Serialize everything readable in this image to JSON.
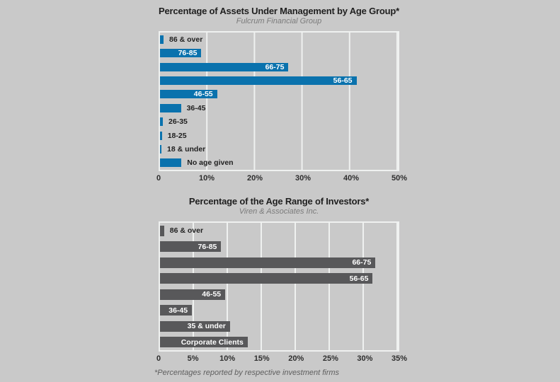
{
  "page": {
    "background_color": "#c9c9c9",
    "grid_color": "#eff1f0",
    "footnote": "*Percentages reported by respective investment firms"
  },
  "chart_data": [
    {
      "type": "bar",
      "orientation": "horizontal",
      "title": "Percentage of Assets Under Management by Age Group*",
      "subtitle": "Fulcrum Financial Group",
      "bar_color": "#0a72ad",
      "grid": true,
      "xlabel": "",
      "ylabel": "",
      "xlim": [
        0,
        50
      ],
      "xticks": [
        "0",
        "10%",
        "20%",
        "30%",
        "40%",
        "50%"
      ],
      "categories": [
        "86 & over",
        "76-85",
        "66-75",
        "56-65",
        "46-55",
        "36-45",
        "26-35",
        "18-25",
        "18 & under",
        "No age given"
      ],
      "values": [
        0.75,
        8.7,
        27,
        41.3,
        12,
        4.4,
        0.6,
        0.4,
        0.25,
        4.5
      ],
      "label_inside": [
        false,
        true,
        true,
        true,
        true,
        false,
        false,
        false,
        false,
        false
      ]
    },
    {
      "type": "bar",
      "orientation": "horizontal",
      "title": "Percentage of the Age Range of Investors*",
      "subtitle": "Viren & Associates Inc.",
      "bar_color": "#58585a",
      "grid": true,
      "xlabel": "",
      "ylabel": "",
      "xlim": [
        0,
        35
      ],
      "xticks": [
        "0",
        "5%",
        "10%",
        "15%",
        "20%",
        "25%",
        "30%",
        "35%"
      ],
      "categories": [
        "86 & over",
        "76-85",
        "66-75",
        "56-65",
        "46-55",
        "36-45",
        "35 & under",
        "Corporate Clients"
      ],
      "values": [
        0.6,
        9,
        31.7,
        31.3,
        9.6,
        4.7,
        10.3,
        12.9
      ],
      "label_inside": [
        false,
        true,
        true,
        true,
        true,
        true,
        true,
        true
      ]
    }
  ]
}
